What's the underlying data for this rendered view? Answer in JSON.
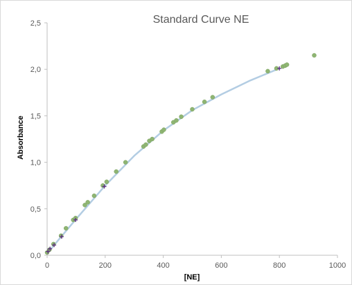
{
  "chart_data": {
    "type": "scatter",
    "title": "Standard Curve NE",
    "xlabel": "[NE]",
    "ylabel": "Absorbance",
    "xlim": [
      0,
      1000
    ],
    "ylim": [
      0,
      2.5
    ],
    "x_ticks": [
      "0",
      "200",
      "400",
      "600",
      "800",
      "1000"
    ],
    "y_ticks": [
      "0,0",
      "0,5",
      "1,0",
      "1,5",
      "2,0",
      "2,5"
    ],
    "grid": false,
    "legend": "none",
    "series": [
      {
        "kind": "points",
        "color": "#8fb573",
        "points": [
          [
            0,
            0.03
          ],
          [
            8,
            0.06
          ],
          [
            22,
            0.12
          ],
          [
            48,
            0.21
          ],
          [
            65,
            0.29
          ],
          [
            90,
            0.38
          ],
          [
            98,
            0.4
          ],
          [
            130,
            0.54
          ],
          [
            140,
            0.57
          ],
          [
            162,
            0.64
          ],
          [
            192,
            0.75
          ],
          [
            205,
            0.79
          ],
          [
            238,
            0.9
          ],
          [
            270,
            1.0
          ],
          [
            332,
            1.17
          ],
          [
            340,
            1.19
          ],
          [
            352,
            1.23
          ],
          [
            362,
            1.25
          ],
          [
            395,
            1.33
          ],
          [
            402,
            1.35
          ],
          [
            435,
            1.43
          ],
          [
            445,
            1.45
          ],
          [
            462,
            1.49
          ],
          [
            500,
            1.57
          ],
          [
            542,
            1.65
          ],
          [
            570,
            1.7
          ],
          [
            760,
            1.98
          ],
          [
            790,
            2.01
          ],
          [
            812,
            2.03
          ],
          [
            820,
            2.04
          ],
          [
            826,
            2.05
          ],
          [
            920,
            2.15
          ]
        ]
      },
      {
        "kind": "markers",
        "color": "#5b2c83",
        "points": [
          [
            3,
            0.04
          ],
          [
            10,
            0.07
          ],
          [
            24,
            0.11
          ],
          [
            50,
            0.2
          ],
          [
            98,
            0.38
          ],
          [
            197,
            0.74
          ],
          [
            800,
            2.01
          ]
        ]
      },
      {
        "kind": "fit",
        "color": "#b3cde3",
        "points": [
          [
            0,
            0.02
          ],
          [
            100,
            0.39
          ],
          [
            200,
            0.75
          ],
          [
            300,
            1.07
          ],
          [
            400,
            1.34
          ],
          [
            500,
            1.56
          ],
          [
            600,
            1.73
          ],
          [
            700,
            1.88
          ],
          [
            800,
            2.01
          ]
        ]
      }
    ]
  }
}
